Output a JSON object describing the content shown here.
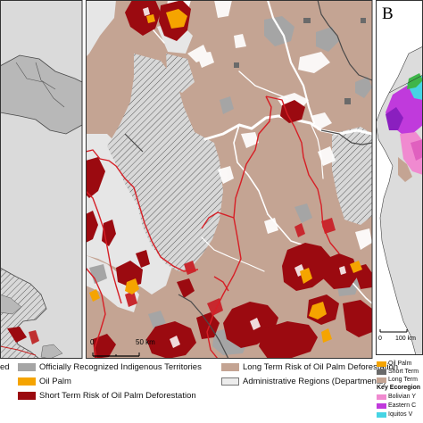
{
  "panel_b_letter": "B",
  "legend": {
    "items": [
      {
        "label": "ed",
        "color": "#ffffff"
      },
      {
        "label": "Officially Recognized Indigenous Territories",
        "color": "#a5a5a5"
      },
      {
        "label": "Long Term Risk of Oil Palm Deforestation",
        "color": "#c4a493"
      },
      {
        "label": "Oil Palm",
        "color": "#f5a400"
      },
      {
        "label": "Administrative Regions (Departments)",
        "color": "#ececec"
      },
      {
        "label": "Short Term Risk of Oil Palm Deforestation",
        "color": "#9b0a10"
      }
    ]
  },
  "main_map": {
    "scale_zero": "0",
    "scale_distance": "50 km"
  },
  "panel_b": {
    "scale_zero": "0",
    "scale_distance": "100 km",
    "legend_items": [
      {
        "label": "Oil Palm",
        "color": "#f5a400"
      },
      {
        "label": "Short Term",
        "color": "#6a6a6a"
      },
      {
        "label": "Long Term",
        "color": "#c4a493"
      }
    ],
    "ecoregion_title": "Key Ecoregion",
    "ecoregions": [
      {
        "label": "Bolivian Y",
        "color": "#f08ad0"
      },
      {
        "label": "Eastern C",
        "color": "#c03adc"
      },
      {
        "label": "Iquitos V",
        "color": "#46d4e4"
      }
    ]
  }
}
